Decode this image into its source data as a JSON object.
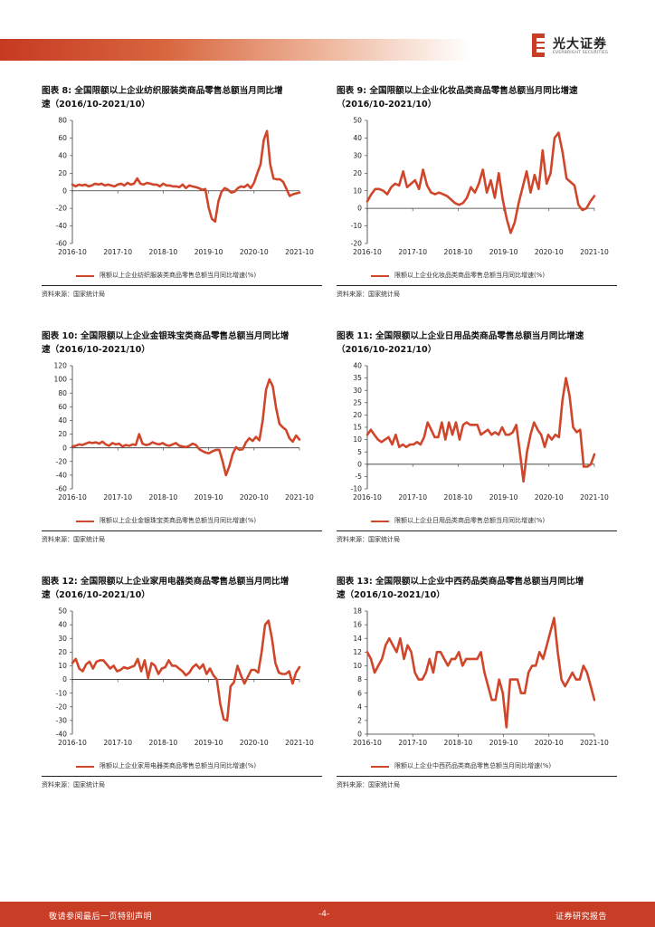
{
  "header": {
    "company_name": "光大证券",
    "company_name_en": "EVERBRIGHT SECURITIES"
  },
  "colors": {
    "brand": "#c83d25",
    "series": "#d0462b"
  },
  "charts": [
    {
      "id": "c8",
      "title_line1": "图表 8: 全国限额以上企业纺织服装类商品零售总额当月同比增",
      "title_line2": "速（2016/10-2021/10）",
      "legend": "限额以上企业纺织服装类商品零售总额当月同比增速(%)",
      "source": "资料来源：国家统计局"
    },
    {
      "id": "c9",
      "title_line1": "图表 9: 全国限额以上企业化妆品类商品零售总额当月同比增速",
      "title_line2": "（2016/10-2021/10）",
      "legend": "限额以上企业化妆品类商品零售总额当月同比增速(%)",
      "source": "资料来源：国家统计局"
    },
    {
      "id": "c10",
      "title_line1": "图表 10: 全国限额以上企业金银珠宝类商品零售总额当月同比增",
      "title_line2": "速（2016/10-2021/10）",
      "legend": "限额以上企业金银珠宝类商品零售总额当月同比增速(%)",
      "source": "资料来源：国家统计局"
    },
    {
      "id": "c11",
      "title_line1": "图表 11: 全国限额以上企业日用品类商品零售总额当月同比增速",
      "title_line2": "（2016/10-2021/10）",
      "legend": "限额以上企业日用品类商品零售总额当月同比增速(%)",
      "source": "资料来源：国家统计局"
    },
    {
      "id": "c12",
      "title_line1": "图表 12: 全国限额以上企业家用电器类商品零售总额当月同比增",
      "title_line2": "速（2016/10-2021/10）",
      "legend": "限额以上企业家用电器类商品零售总额当月同比增速(%)",
      "source": "资料来源：国家统计局"
    },
    {
      "id": "c13",
      "title_line1": "图表 13: 全国限额以上企业中西药品类商品零售总额当月同比增",
      "title_line2": "速（2016/10-2021/10）",
      "legend": "限额以上企业中西药品类商品零售总额当月同比增速(%)",
      "source": "资料来源：国家统计局"
    }
  ],
  "chart_data": [
    {
      "type": "line",
      "name": "c8",
      "title": "全国限额以上企业纺织服装类商品零售总额当月同比增速",
      "xlabel": "",
      "ylabel": "",
      "ylim": [
        -60,
        80
      ],
      "yticks": [
        -60,
        -40,
        -20,
        0,
        20,
        40,
        60,
        80
      ],
      "xticks": [
        "2016-10",
        "2017-10",
        "2018-10",
        "2019-10",
        "2020-10",
        "2021-10"
      ],
      "series": [
        {
          "name": "限额以上企业纺织服装类商品零售总额当月同比增速(%)",
          "values": [
            7,
            5,
            7,
            6,
            7,
            5,
            6,
            8,
            7,
            8,
            6,
            7,
            6,
            5,
            7,
            8,
            6,
            9,
            7,
            8,
            14,
            8,
            7,
            9,
            8,
            7,
            7,
            5,
            8,
            6,
            6,
            5,
            5,
            4,
            7,
            3,
            6,
            5,
            4,
            3,
            1,
            2,
            -19,
            -32,
            -35,
            -12,
            -1,
            3,
            1,
            -2,
            -1,
            3,
            5,
            4,
            7,
            3,
            9,
            20,
            30,
            58,
            68,
            30,
            14,
            13,
            13,
            10,
            2,
            -6,
            -4,
            -3,
            -2
          ]
        }
      ]
    },
    {
      "type": "line",
      "name": "c9",
      "title": "全国限额以上企业化妆品类商品零售总额当月同比增速",
      "xlabel": "",
      "ylabel": "",
      "ylim": [
        -20,
        50
      ],
      "yticks": [
        -20,
        -10,
        0,
        10,
        20,
        30,
        40,
        50
      ],
      "xticks": [
        "2016-10",
        "2017-10",
        "2018-10",
        "2019-10",
        "2020-10",
        "2021-10"
      ],
      "series": [
        {
          "name": "限额以上企业化妆品类商品零售总额当月同比增速(%)",
          "values": [
            4,
            8,
            11,
            11,
            10,
            8,
            12,
            14,
            13,
            21,
            12,
            14,
            16,
            11,
            22,
            13,
            9,
            8,
            9,
            8,
            7,
            5,
            3,
            2,
            3,
            6,
            12,
            9,
            14,
            22,
            9,
            16,
            6,
            20,
            5,
            -6,
            -14,
            -8,
            3,
            12,
            21,
            9,
            19,
            11,
            33,
            14,
            20,
            40,
            43,
            32,
            17,
            15,
            13,
            2,
            -1,
            0,
            4,
            7
          ]
        }
      ]
    },
    {
      "type": "line",
      "name": "c10",
      "title": "全国限额以上企业金银珠宝类商品零售总额当月同比增速",
      "xlabel": "",
      "ylabel": "",
      "ylim": [
        -60,
        120
      ],
      "yticks": [
        -60,
        -40,
        -20,
        0,
        20,
        40,
        60,
        80,
        100,
        120
      ],
      "xticks": [
        "2016-10",
        "2017-10",
        "2018-10",
        "2019-10",
        "2020-10",
        "2021-10"
      ],
      "series": [
        {
          "name": "限额以上企业金银珠宝类商品零售总额当月同比增速(%)",
          "values": [
            2,
            3,
            5,
            4,
            6,
            8,
            7,
            8,
            6,
            9,
            5,
            3,
            7,
            5,
            6,
            2,
            4,
            3,
            5,
            4,
            20,
            6,
            4,
            5,
            8,
            6,
            5,
            7,
            4,
            3,
            5,
            7,
            3,
            2,
            1,
            3,
            6,
            4,
            -2,
            -5,
            -7,
            -8,
            -5,
            -3,
            -3,
            -20,
            -40,
            -27,
            -9,
            1,
            -3,
            -2,
            8,
            14,
            10,
            16,
            11,
            40,
            85,
            100,
            90,
            58,
            35,
            30,
            26,
            14,
            9,
            18,
            12
          ]
        }
      ]
    },
    {
      "type": "line",
      "name": "c11",
      "title": "全国限额以上企业日用品类商品零售总额当月同比增速",
      "xlabel": "",
      "ylabel": "",
      "ylim": [
        -10,
        40
      ],
      "yticks": [
        -10,
        -5,
        0,
        5,
        10,
        15,
        20,
        25,
        30,
        35,
        40
      ],
      "xticks": [
        "2016-10",
        "2017-10",
        "2018-10",
        "2019-10",
        "2020-10",
        "2021-10"
      ],
      "series": [
        {
          "name": "限额以上企业日用品类商品零售总额当月同比增速(%)",
          "values": [
            12,
            14,
            12,
            10,
            9,
            10,
            11,
            8,
            12,
            7,
            8,
            7,
            8,
            8,
            9,
            8,
            11,
            17,
            14,
            11,
            11,
            17,
            10,
            17,
            12,
            17,
            10,
            16,
            17,
            16,
            16,
            16,
            12,
            13,
            14,
            12,
            13,
            12,
            15,
            12,
            12,
            13,
            16,
            5,
            -7,
            5,
            12,
            17,
            14,
            12,
            7,
            12,
            10,
            12,
            11,
            26,
            35,
            28,
            15,
            13,
            14,
            -1,
            -1,
            0,
            4
          ]
        }
      ]
    },
    {
      "type": "line",
      "name": "c12",
      "title": "全国限额以上企业家用电器类商品零售总额当月同比增速",
      "xlabel": "",
      "ylabel": "",
      "ylim": [
        -40,
        50
      ],
      "yticks": [
        -40,
        -30,
        -20,
        -10,
        0,
        10,
        20,
        30,
        40,
        50
      ],
      "xticks": [
        "2016-10",
        "2017-10",
        "2018-10",
        "2019-10",
        "2020-10",
        "2021-10"
      ],
      "series": [
        {
          "name": "限额以上企业家用电器类商品零售总额当月同比增速(%)",
          "values": [
            12,
            15,
            8,
            6,
            11,
            13,
            8,
            13,
            14,
            14,
            11,
            8,
            10,
            6,
            7,
            9,
            8,
            9,
            10,
            15,
            6,
            14,
            1,
            12,
            10,
            4,
            8,
            9,
            14,
            10,
            10,
            8,
            6,
            3,
            5,
            9,
            11,
            8,
            11,
            4,
            8,
            3,
            0,
            -18,
            -29,
            -30,
            -5,
            -2,
            10,
            3,
            -3,
            2,
            7,
            7,
            5,
            20,
            40,
            43,
            30,
            12,
            5,
            4,
            4,
            6,
            -3,
            5,
            9
          ]
        }
      ]
    },
    {
      "type": "line",
      "name": "c13",
      "title": "全国限额以上企业中西药品类商品零售总额当月同比增速",
      "xlabel": "",
      "ylabel": "",
      "ylim": [
        0,
        18
      ],
      "yticks": [
        0,
        2,
        4,
        6,
        8,
        10,
        12,
        14,
        16,
        18
      ],
      "xticks": [
        "2016-10",
        "2017-10",
        "2018-10",
        "2019-10",
        "2020-10",
        "2021-10"
      ],
      "series": [
        {
          "name": "限额以上企业中西药品类商品零售总额当月同比增速(%)",
          "values": [
            12,
            11,
            9,
            10,
            11,
            13,
            14,
            13,
            12,
            14,
            11,
            13,
            12,
            9,
            8,
            8,
            9,
            11,
            9,
            12,
            12,
            11,
            10,
            11,
            11,
            12,
            10,
            11,
            11,
            11,
            11,
            12,
            9,
            7,
            5,
            5,
            8,
            6,
            1,
            8,
            8,
            8,
            6,
            6,
            9,
            10,
            10,
            12,
            11,
            13,
            15,
            17,
            12,
            8,
            7,
            8,
            9,
            8,
            8,
            10,
            9,
            7,
            5
          ]
        }
      ]
    }
  ],
  "footer": {
    "left": "敬请参阅最后一页特别声明",
    "page": "-4-",
    "right": "证券研究报告"
  }
}
